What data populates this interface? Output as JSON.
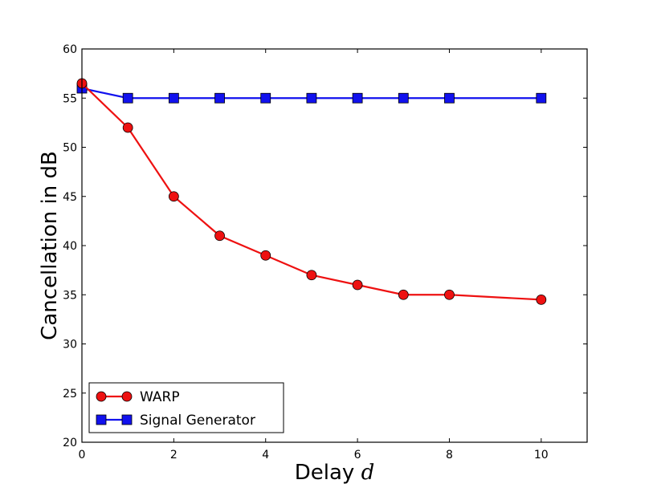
{
  "chart_data": {
    "type": "line",
    "title": "",
    "xlabel": "Delay",
    "xlabel_var": "d",
    "ylabel": "Cancellation in dB",
    "xlim": [
      0,
      11
    ],
    "ylim": [
      20,
      60
    ],
    "xticks": [
      0,
      2,
      4,
      6,
      8,
      10
    ],
    "yticks": [
      20,
      25,
      30,
      35,
      40,
      45,
      50,
      55,
      60
    ],
    "grid": false,
    "legend_position": "lower-left",
    "series": [
      {
        "name": "WARP",
        "color": "#ee1111",
        "marker": "circle",
        "x": [
          0,
          1,
          2,
          3,
          4,
          5,
          6,
          7,
          8,
          10
        ],
        "y": [
          56.5,
          52,
          45,
          41,
          39,
          37,
          36,
          35,
          35,
          34.5
        ]
      },
      {
        "name": "Signal Generator",
        "color": "#1111ee",
        "marker": "square",
        "x": [
          0,
          1,
          2,
          3,
          4,
          5,
          6,
          7,
          8,
          10
        ],
        "y": [
          56,
          55,
          55,
          55,
          55,
          55,
          55,
          55,
          55,
          55
        ]
      }
    ]
  }
}
